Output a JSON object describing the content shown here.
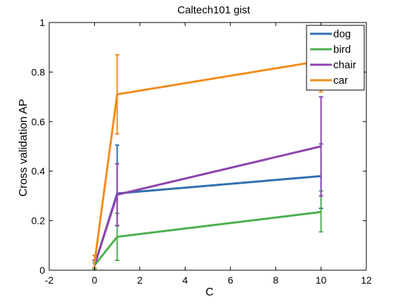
{
  "chart_data": {
    "type": "line",
    "title": "Caltech101 gist",
    "xlabel": "C",
    "ylabel": "Cross validation AP",
    "xlim": [
      -2,
      12
    ],
    "ylim": [
      0,
      1
    ],
    "xticks": [
      "-2",
      "0",
      "2",
      "4",
      "6",
      "8",
      "10",
      "12"
    ],
    "yticks": [
      "0",
      "0.2",
      "0.4",
      "0.6",
      "0.8",
      "1"
    ],
    "x": [
      0,
      1,
      10
    ],
    "grid": false,
    "legend_position": "top-right",
    "series": [
      {
        "name": "dog",
        "color": "#2e6fad",
        "values": [
          0.02,
          0.31,
          0.38
        ],
        "err_low": [
          0.01,
          0.18,
          0.25
        ],
        "err_high": [
          0.04,
          0.505,
          0.51
        ]
      },
      {
        "name": "bird",
        "color": "#4caf50",
        "values": [
          0.02,
          0.135,
          0.235
        ],
        "err_low": [
          0.005,
          0.04,
          0.155
        ],
        "err_high": [
          0.03,
          0.23,
          0.32
        ]
      },
      {
        "name": "chair",
        "color": "#8e44ad",
        "values": [
          0.02,
          0.305,
          0.5
        ],
        "err_low": [
          0.01,
          0.18,
          0.3
        ],
        "err_high": [
          0.04,
          0.43,
          0.7
        ]
      },
      {
        "name": "car",
        "color": "#f28c1e",
        "values": [
          0.03,
          0.71,
          0.845
        ],
        "err_low": [
          0.01,
          0.55,
          0.72
        ],
        "err_high": [
          0.06,
          0.87,
          0.845
        ]
      }
    ]
  }
}
